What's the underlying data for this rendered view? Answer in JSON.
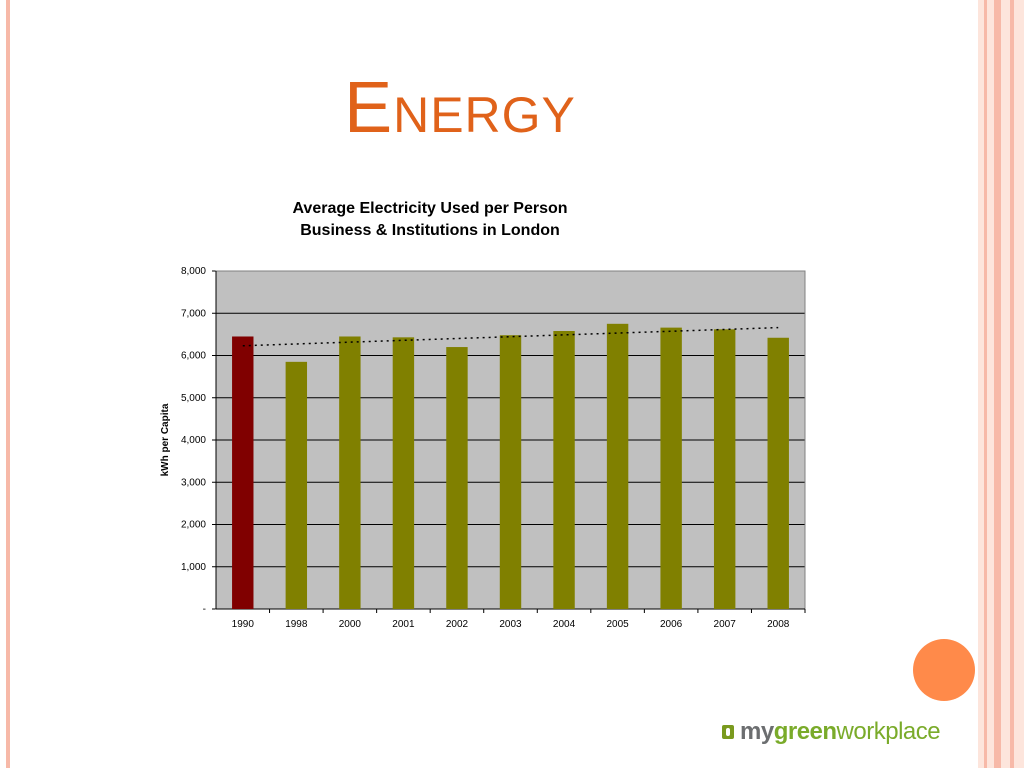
{
  "slide": {
    "title": "Energy",
    "logo": {
      "part1": "my",
      "part2": "green",
      "part3": "workplace"
    }
  },
  "colors": {
    "title": "#e0621a",
    "bar_highlight": "#800000",
    "bar": "#808000",
    "plot_background": "#c0c0c0",
    "accent_circle": "#ff8a4a"
  },
  "chart_data": {
    "type": "bar",
    "title": [
      "Average Electricity Used per Person",
      "Business & Institutions in London"
    ],
    "ylabel": "kWh per Capita",
    "xlabel": "",
    "categories": [
      "1990",
      "1998",
      "2000",
      "2001",
      "2002",
      "2003",
      "2004",
      "2005",
      "2006",
      "2007",
      "2008"
    ],
    "values": [
      6450,
      5850,
      6450,
      6430,
      6200,
      6480,
      6580,
      6750,
      6660,
      6620,
      6420
    ],
    "highlight_index": 0,
    "ylim": [
      0,
      8000
    ],
    "yticks": [
      0,
      1000,
      2000,
      3000,
      4000,
      5000,
      6000,
      7000,
      8000
    ],
    "ytick_labels": [
      "-",
      "1,000",
      "2,000",
      "3,000",
      "4,000",
      "5,000",
      "6,000",
      "7,000",
      "8,000"
    ],
    "trendline": {
      "style": "dotted",
      "start": 6230,
      "end": 6660
    },
    "grid": true,
    "legend": "none"
  }
}
